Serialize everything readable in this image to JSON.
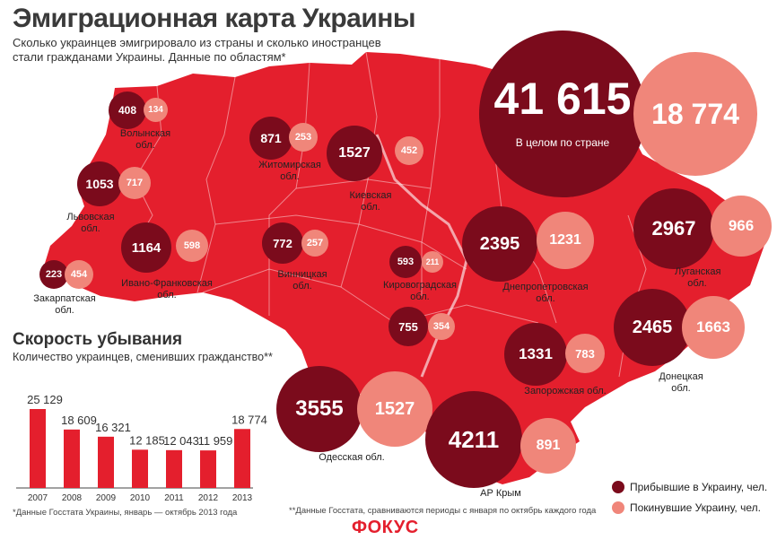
{
  "header": {
    "title": "Эмиграционная карта Украины",
    "subtitle": "Сколько украинцев эмигрировало из страны и сколько иностранцев стали гражданами Украины. Данные по областям*"
  },
  "colors": {
    "map": "#e41f2d",
    "arrived": "#7b0b1c",
    "left": "#f0867a",
    "bar": "#e41f2d"
  },
  "total": {
    "arrived": "41 615",
    "left": "18 774",
    "caption": "В целом по стране"
  },
  "regions": [
    {
      "name": "Волынская обл.",
      "arrived": "408",
      "left": "134"
    },
    {
      "name": "Житомирская обл.",
      "arrived": "871",
      "left": "253"
    },
    {
      "name": "Киевская обл.",
      "arrived": "1527",
      "left": "452"
    },
    {
      "name": "Львовская обл.",
      "arrived": "1053",
      "left": "717"
    },
    {
      "name": "Ивано-Франковская обл.",
      "arrived": "1164",
      "left": "598"
    },
    {
      "name": "Закарпатская обл.",
      "arrived": "223",
      "left": "454"
    },
    {
      "name": "Винницкая обл.",
      "arrived": "772",
      "left": "257"
    },
    {
      "name": "Кировоградская обл.",
      "arrived": "593",
      "left": "211"
    },
    {
      "name": "",
      "arrived": "755",
      "left": "354"
    },
    {
      "name": "Днепропетровская обл.",
      "arrived": "2395",
      "left": "1231"
    },
    {
      "name": "Луганская обл.",
      "arrived": "2967",
      "left": "966"
    },
    {
      "name": "Донецкая обл.",
      "arrived": "2465",
      "left": "1663"
    },
    {
      "name": "Запорожская обл.",
      "arrived": "1331",
      "left": "783"
    },
    {
      "name": "Одесская обл.",
      "arrived": "3555",
      "left": "1527"
    },
    {
      "name": "АР Крым",
      "arrived": "4211",
      "left": "891"
    }
  ],
  "legend": {
    "arrived": "Прибывшие в Украину, чел.",
    "left": "Покинувшие Украину, чел."
  },
  "speed": {
    "title": "Скорость убывания",
    "subtitle": "Количество украинцев, сменивших гражданство**"
  },
  "chart_data": {
    "type": "bar",
    "categories": [
      "2007",
      "2008",
      "2009",
      "2010",
      "2011",
      "2012",
      "2013"
    ],
    "values": [
      25129,
      18609,
      16321,
      12185,
      12043,
      11959,
      18774
    ],
    "value_labels": [
      "25 129",
      "18 609",
      "16 321",
      "12 185",
      "12 043",
      "11 959",
      "18 774"
    ],
    "title": "Скорость убывания",
    "ylim": [
      0,
      25129
    ]
  },
  "footnotes": {
    "chart": "*Данные Госстата Украины, январь — октябрь 2013 года",
    "map": "**Данные Госстата, сравниваются периоды с января по октябрь каждого года"
  },
  "logo": "ФОКУС"
}
